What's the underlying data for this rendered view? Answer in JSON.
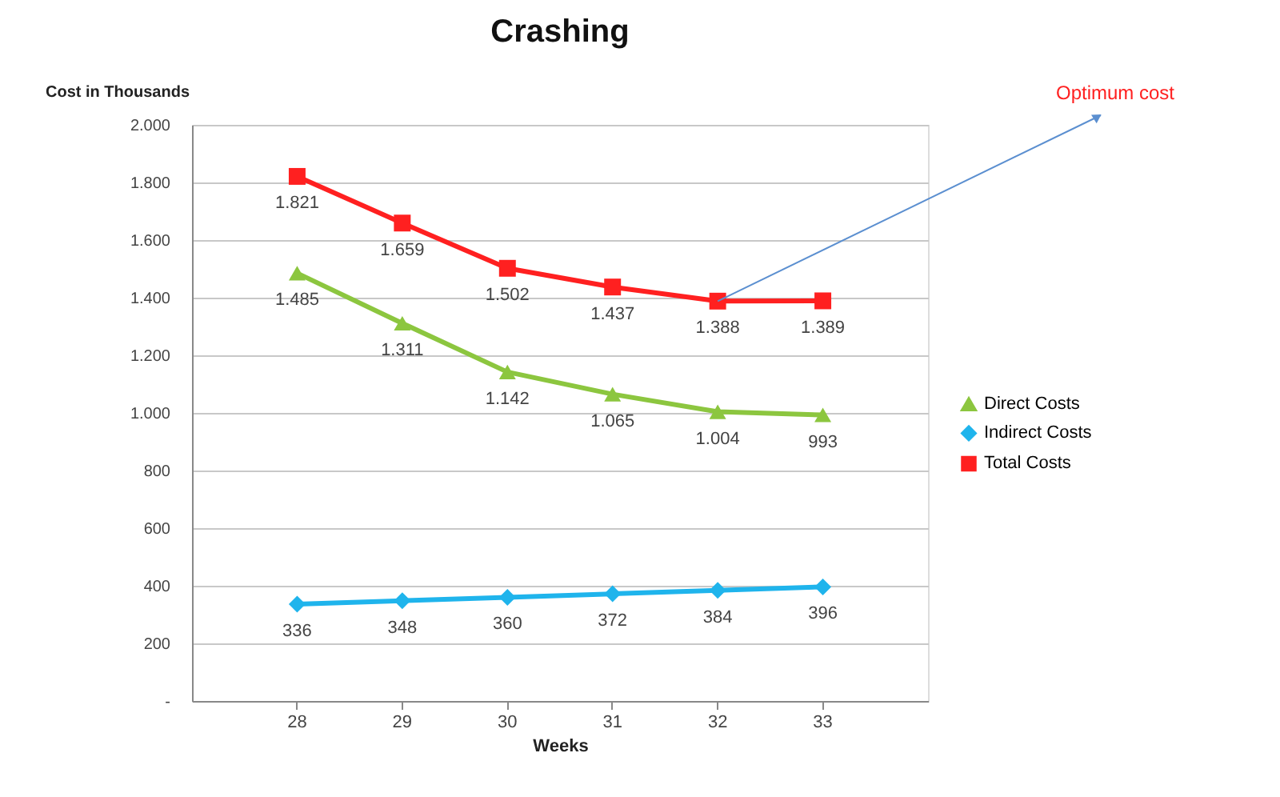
{
  "chart_data": {
    "type": "line",
    "title": "Crashing",
    "xlabel": "Weeks",
    "ylabel": "Cost in Thousands",
    "categories": [
      "28",
      "29",
      "30",
      "31",
      "32",
      "33"
    ],
    "series": [
      {
        "name": "Direct Costs",
        "color": "#8cc63f",
        "marker": "triangle",
        "values": [
          1485,
          1311,
          1142,
          1065,
          1004,
          993
        ],
        "value_labels": [
          "1.485",
          "1.311",
          "1.142",
          "1.065",
          "1.004",
          "993"
        ]
      },
      {
        "name": "Indirect Costs",
        "color": "#1fb4ec",
        "marker": "diamond",
        "values": [
          336,
          348,
          360,
          372,
          384,
          396
        ],
        "value_labels": [
          "336",
          "348",
          "360",
          "372",
          "384",
          "396"
        ]
      },
      {
        "name": "Total Costs",
        "color": "#ff2020",
        "marker": "square",
        "values": [
          1821,
          1659,
          1502,
          1437,
          1388,
          1389
        ],
        "value_labels": [
          "1.821",
          "1.659",
          "1.502",
          "1.437",
          "1.388",
          "1.389"
        ]
      }
    ],
    "ylim": [
      0,
      2000
    ],
    "yticks": [
      {
        "value": 0,
        "label": "-"
      },
      {
        "value": 200,
        "label": "200"
      },
      {
        "value": 400,
        "label": "400"
      },
      {
        "value": 600,
        "label": "600"
      },
      {
        "value": 800,
        "label": "800"
      },
      {
        "value": 1000,
        "label": "1.000"
      },
      {
        "value": 1200,
        "label": "1.200"
      },
      {
        "value": 1400,
        "label": "1.400"
      },
      {
        "value": 1600,
        "label": "1.600"
      },
      {
        "value": 1800,
        "label": "1.800"
      },
      {
        "value": 2000,
        "label": "2.000"
      }
    ],
    "annotations": [
      {
        "text": "Optimum cost",
        "x": "32",
        "y": 1388
      }
    ],
    "grid": "y",
    "legend": "right",
    "line_style": "solid"
  }
}
